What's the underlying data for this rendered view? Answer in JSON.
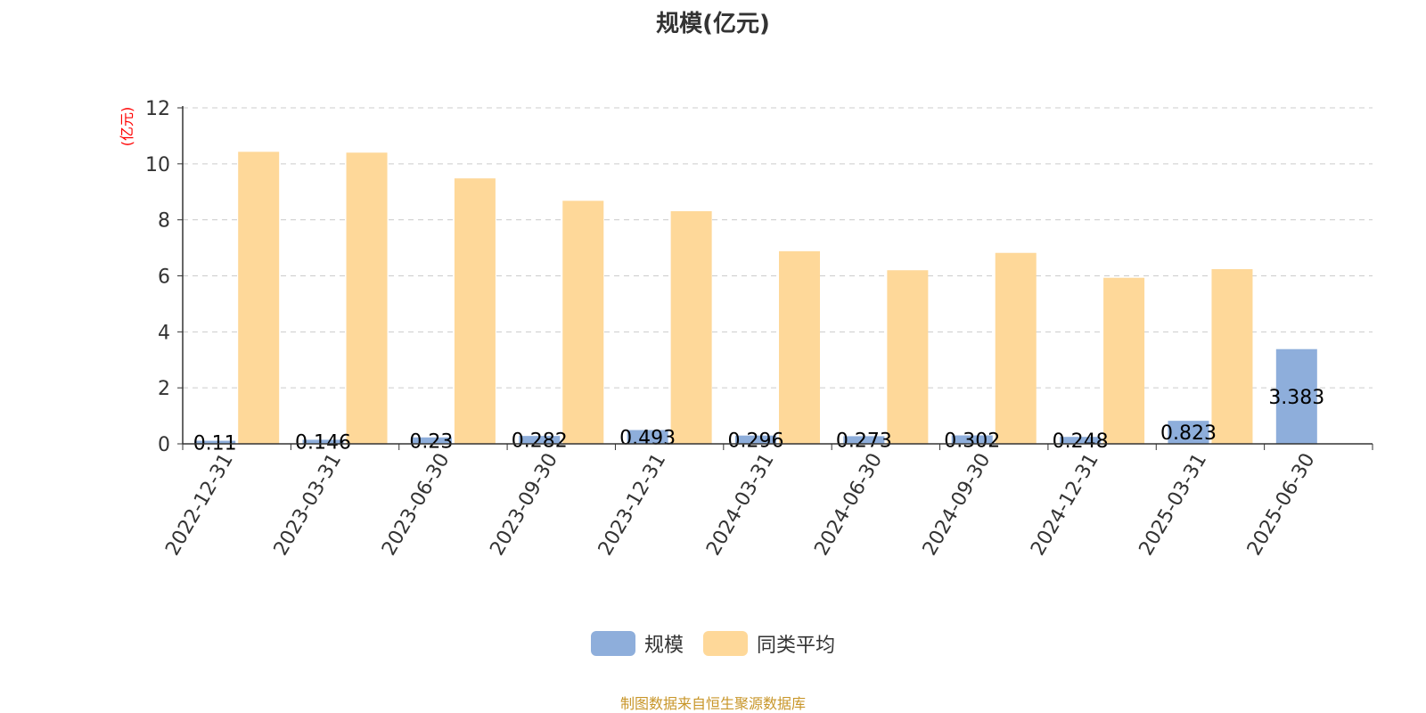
{
  "chart_data": {
    "type": "bar",
    "title": "规模(亿元)",
    "ylabel": "(亿元)",
    "xlabel": "",
    "categories": [
      "2022-12-31",
      "2023-03-31",
      "2023-06-30",
      "2023-09-30",
      "2023-12-31",
      "2024-03-31",
      "2024-06-30",
      "2024-09-30",
      "2024-12-31",
      "2025-03-31",
      "2025-06-30"
    ],
    "series": [
      {
        "name": "规模",
        "color": "#8eaedb",
        "values": [
          0.11,
          0.146,
          0.23,
          0.282,
          0.493,
          0.296,
          0.273,
          0.302,
          0.248,
          0.823,
          3.383
        ],
        "labels": [
          "0.11",
          "0.146",
          "0.23",
          "0.282",
          "0.493",
          "0.296",
          "0.273",
          "0.302",
          "0.248",
          "0.823",
          "3.383"
        ]
      },
      {
        "name": "同类平均",
        "color": "#fed899",
        "values": [
          10.43,
          10.4,
          9.48,
          8.68,
          8.31,
          6.88,
          6.2,
          6.82,
          5.93,
          6.24,
          null
        ]
      }
    ],
    "ylim": [
      0,
      12
    ],
    "yticks": [
      0,
      2,
      4,
      6,
      8,
      10,
      12
    ],
    "grid": true,
    "legend": "bottom-center"
  },
  "source_note": "制图数据来自恒生聚源数据库",
  "colors": {
    "axis_label": "#ff0000",
    "text": "#333333",
    "source": "#c8962a",
    "grid": "#cccccc"
  }
}
